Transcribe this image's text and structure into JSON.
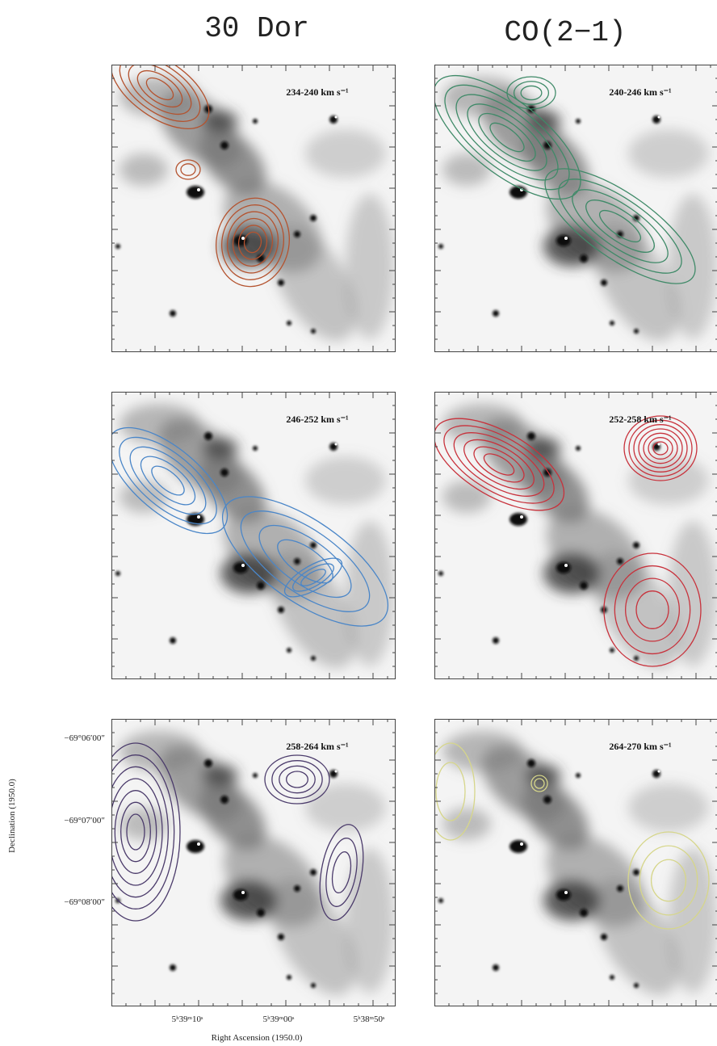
{
  "titles": [
    "30 Dor",
    "CO(2−1)"
  ],
  "panels": [
    {
      "label": "234-240 km s⁻¹",
      "color": "#b4532f"
    },
    {
      "label": "240-246 km s⁻¹",
      "color": "#3f8a68"
    },
    {
      "label": "246-252 km s⁻¹",
      "color": "#4a86c8"
    },
    {
      "label": "252-258 km s⁻¹",
      "color": "#c8323c"
    },
    {
      "label": "258-264 km s⁻¹",
      "color": "#4b3b6b"
    },
    {
      "label": "264-270 km s⁻¹",
      "color": "#d6d68a"
    }
  ],
  "y_axis": {
    "label": "Declination (1950.0)",
    "ticks": [
      "−69°06′00″",
      "−69°07′00″",
      "−69°08′00″"
    ]
  },
  "x_axis": {
    "label": "Right Ascension (1950.0)",
    "ticks": [
      "5ʰ39ᵐ10ˢ",
      "5ʰ39ᵐ00ˢ",
      "5ʰ38ᵐ50ˢ"
    ]
  }
}
